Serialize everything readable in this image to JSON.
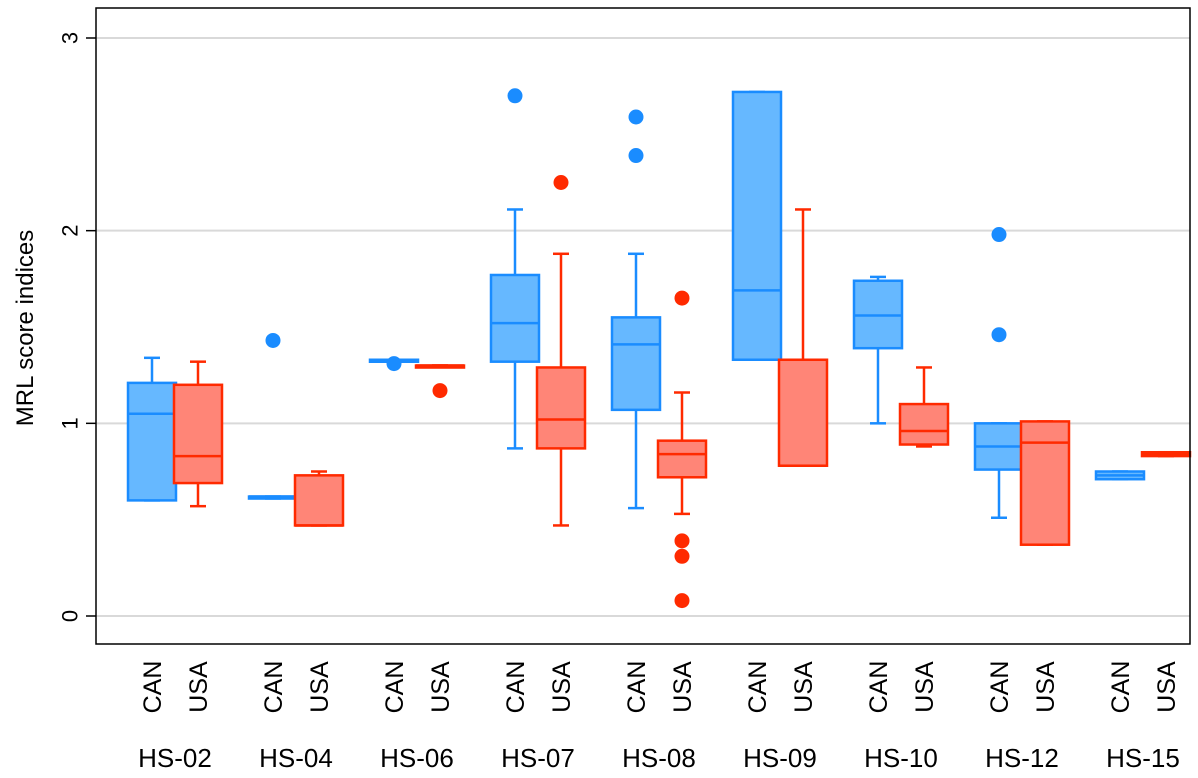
{
  "chart_data": {
    "type": "box",
    "ylabel": "MRL score indices",
    "ylim": [
      -0.15,
      3.15
    ],
    "yticks": [
      0,
      1,
      2,
      3
    ],
    "grid": "horizontal",
    "colors": {
      "CAN": {
        "stroke": "#1a8cff",
        "fill": "#66b8ff"
      },
      "USA": {
        "stroke": "#ff2a00",
        "fill": "#ff8577"
      }
    },
    "groups": [
      {
        "label": "HS-02",
        "boxes": [
          {
            "category": "CAN",
            "q1": 0.6,
            "median": 1.05,
            "q3": 1.21,
            "whisker_low": 0.6,
            "whisker_high": 1.34,
            "outliers": []
          },
          {
            "category": "USA",
            "q1": 0.69,
            "median": 0.83,
            "q3": 1.2,
            "whisker_low": 0.57,
            "whisker_high": 1.32,
            "outliers": []
          }
        ]
      },
      {
        "label": "HS-04",
        "boxes": [
          {
            "category": "CAN",
            "q1": 0.61,
            "median": 0.62,
            "q3": 0.62,
            "whisker_low": 0.61,
            "whisker_high": 0.62,
            "outliers": [
              1.43
            ]
          },
          {
            "category": "USA",
            "q1": 0.47,
            "median": 0.47,
            "q3": 0.73,
            "whisker_low": 0.47,
            "whisker_high": 0.75,
            "outliers": []
          }
        ]
      },
      {
        "label": "HS-06",
        "boxes": [
          {
            "category": "CAN",
            "q1": 1.32,
            "median": 1.33,
            "q3": 1.33,
            "whisker_low": 1.32,
            "whisker_high": 1.33,
            "outliers": [
              1.31
            ]
          },
          {
            "category": "USA",
            "q1": 1.3,
            "median": 1.3,
            "q3": 1.3,
            "whisker_low": 1.3,
            "whisker_high": 1.3,
            "outliers": [
              1.17
            ]
          }
        ]
      },
      {
        "label": "HS-07",
        "boxes": [
          {
            "category": "CAN",
            "q1": 1.32,
            "median": 1.52,
            "q3": 1.77,
            "whisker_low": 0.87,
            "whisker_high": 2.11,
            "outliers": [
              2.7
            ]
          },
          {
            "category": "USA",
            "q1": 0.87,
            "median": 1.02,
            "q3": 1.29,
            "whisker_low": 0.47,
            "whisker_high": 1.88,
            "outliers": [
              2.25
            ]
          }
        ]
      },
      {
        "label": "HS-08",
        "boxes": [
          {
            "category": "CAN",
            "q1": 1.07,
            "median": 1.41,
            "q3": 1.55,
            "whisker_low": 0.56,
            "whisker_high": 1.88,
            "outliers": [
              2.39,
              2.59
            ]
          },
          {
            "category": "USA",
            "q1": 0.72,
            "median": 0.84,
            "q3": 0.91,
            "whisker_low": 0.53,
            "whisker_high": 1.16,
            "outliers": [
              1.65,
              0.39,
              0.31,
              0.08
            ]
          }
        ]
      },
      {
        "label": "HS-09",
        "boxes": [
          {
            "category": "CAN",
            "q1": 1.33,
            "median": 1.69,
            "q3": 2.72,
            "whisker_low": 1.33,
            "whisker_high": 2.72,
            "outliers": []
          },
          {
            "category": "USA",
            "q1": 0.78,
            "median": 0.78,
            "q3": 1.33,
            "whisker_low": 0.78,
            "whisker_high": 2.11,
            "outliers": []
          }
        ]
      },
      {
        "label": "HS-10",
        "boxes": [
          {
            "category": "CAN",
            "q1": 1.39,
            "median": 1.56,
            "q3": 1.74,
            "whisker_low": 1.0,
            "whisker_high": 1.76,
            "outliers": []
          },
          {
            "category": "USA",
            "q1": 0.89,
            "median": 0.96,
            "q3": 1.1,
            "whisker_low": 0.88,
            "whisker_high": 1.29,
            "outliers": []
          }
        ]
      },
      {
        "label": "HS-12",
        "boxes": [
          {
            "category": "CAN",
            "q1": 0.76,
            "median": 0.88,
            "q3": 1.0,
            "whisker_low": 0.51,
            "whisker_high": 1.0,
            "outliers": [
              1.98,
              1.46
            ]
          },
          {
            "category": "USA",
            "q1": 0.37,
            "median": 0.9,
            "q3": 1.01,
            "whisker_low": 0.37,
            "whisker_high": 1.01,
            "outliers": []
          }
        ]
      },
      {
        "label": "HS-15",
        "boxes": [
          {
            "category": "CAN",
            "q1": 0.71,
            "median": 0.73,
            "q3": 0.75,
            "whisker_low": 0.71,
            "whisker_high": 0.75,
            "outliers": []
          },
          {
            "category": "USA",
            "q1": 0.83,
            "median": 0.84,
            "q3": 0.85,
            "whisker_low": 0.83,
            "whisker_high": 0.85,
            "outliers": []
          }
        ]
      }
    ]
  }
}
